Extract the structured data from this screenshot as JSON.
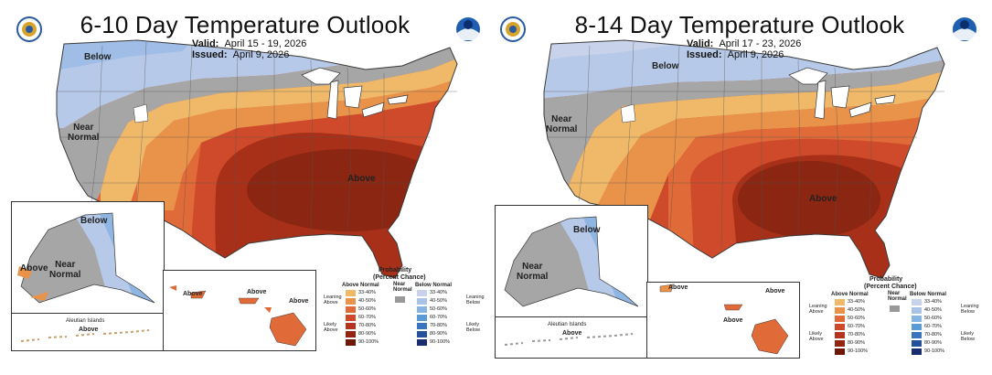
{
  "panels": [
    {
      "title": "6-10 Day Temperature Outlook",
      "valid_label": "Valid:",
      "valid_value": "April 15 - 19, 2026",
      "issued_label": "Issued:",
      "issued_value": "April 9, 2026",
      "labels": {
        "below": "Below",
        "near_normal": "Near\nNormal",
        "above": "Above",
        "ak_below": "Below",
        "ak_above": "Above",
        "ak_near_normal": "Near\nNormal",
        "aleutian": "Aleutian Islands",
        "aleutian_above": "Above",
        "hi_above_1": "Above",
        "hi_above_2": "Above",
        "hi_above_3": "Above"
      }
    },
    {
      "title": "8-14 Day Temperature Outlook",
      "valid_label": "Valid:",
      "valid_value": "April 17 - 23, 2026",
      "issued_label": "Issued:",
      "issued_value": "April 9, 2026",
      "labels": {
        "below": "Below",
        "near_normal": "Near\nNormal",
        "above": "Above",
        "ak_below": "Below",
        "ak_near_normal": "Near\nNormal",
        "aleutian": "Aleutian Islands",
        "aleutian_above": "Above",
        "hi_above_1": "Above",
        "hi_above_2": "Above",
        "hi_above_3": "Above"
      }
    }
  ],
  "legend": {
    "title": "Probability",
    "subtitle": "(Percent Chance)",
    "above_normal": "Above Normal",
    "below_normal": "Below Normal",
    "near_normal": "Near\nNormal",
    "leaning_above": "Leaning\nAbove",
    "likely_above": "Likely\nAbove",
    "leaning_below": "Leaning\nBelow",
    "likely_below": "Likely\nBelow",
    "ranges": [
      "33-40%",
      "40-50%",
      "50-60%",
      "60-70%",
      "70-80%",
      "80-90%",
      "90-100%"
    ],
    "above_colors": [
      "#f0b96a",
      "#e9924a",
      "#e06a38",
      "#cf4a2a",
      "#b5341f",
      "#93240f",
      "#6e1707"
    ],
    "below_colors": [
      "#c8d2ea",
      "#a9c3e6",
      "#86b5e4",
      "#5a9bd6",
      "#3a74be",
      "#25509a",
      "#1a2d6e"
    ],
    "near_color": "#999999"
  },
  "colors": {
    "below_light": "#b7c9e8",
    "below_mid": "#8fb6e2",
    "near": "#a6a6a6",
    "above_33": "#f0b96a",
    "above_40": "#e9924a",
    "above_50": "#e06a38",
    "above_60": "#cf4a2a",
    "above_70": "#a83018",
    "above_80": "#8a2611",
    "lake": "#ffffff",
    "outline": "#3a3a3a"
  }
}
